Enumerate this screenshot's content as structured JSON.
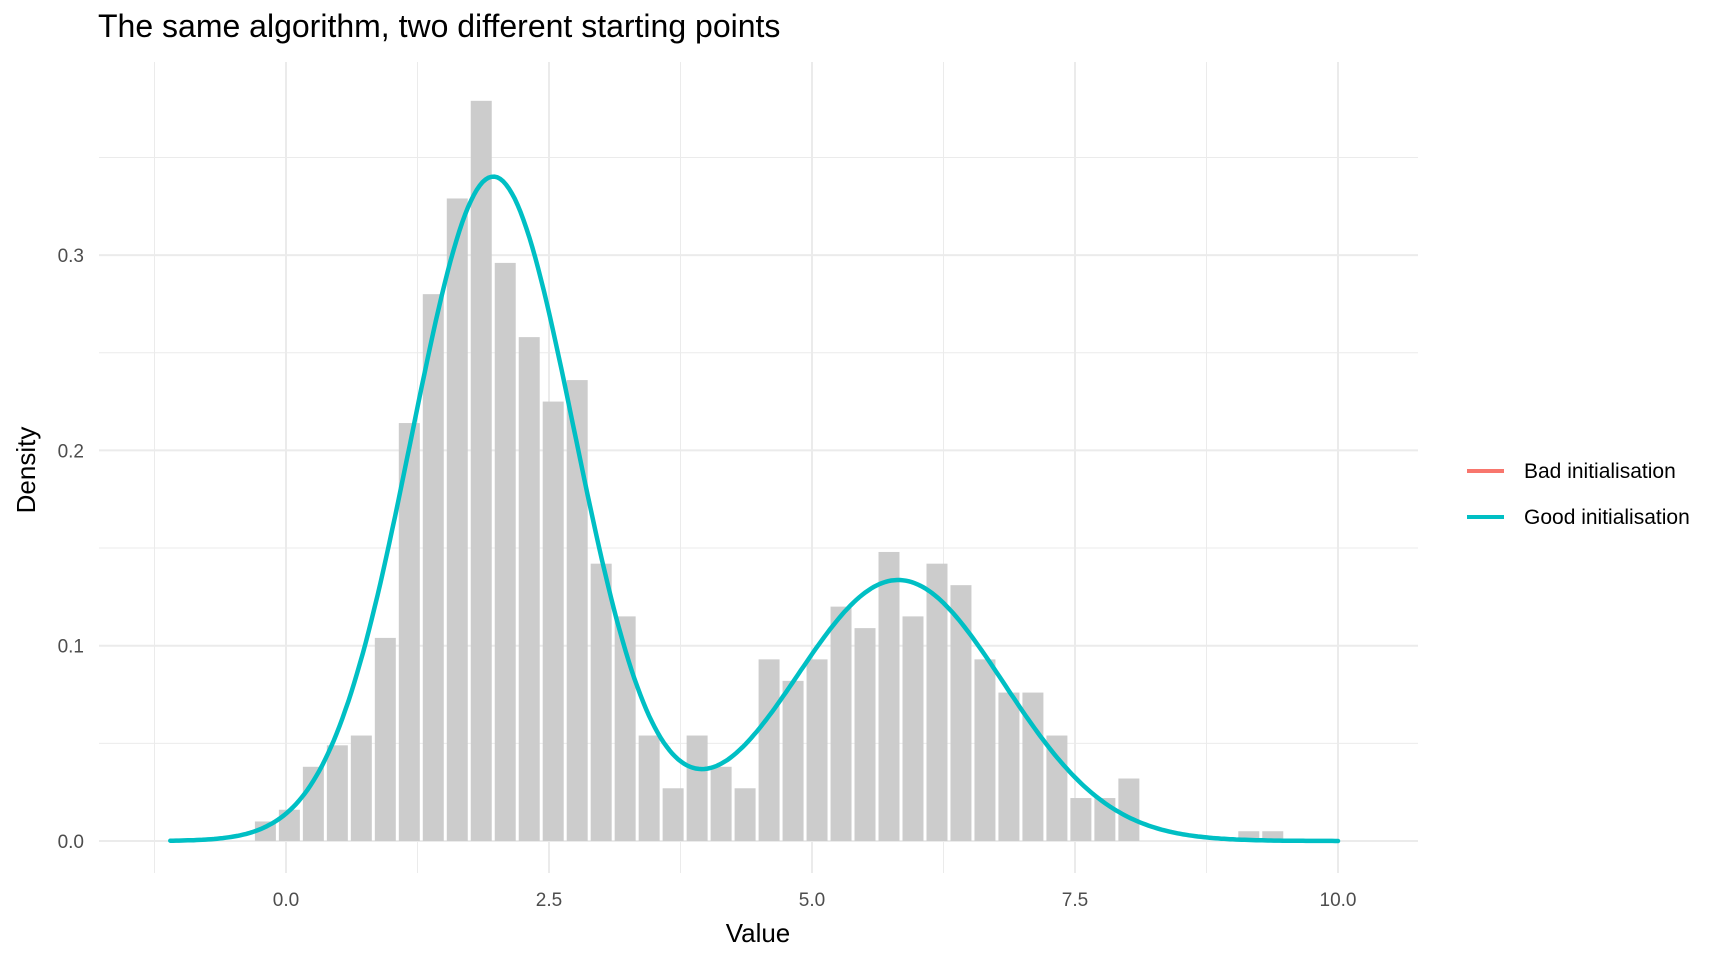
{
  "chart_data": {
    "type": "histogram+line",
    "title": "The same algorithm, two different starting points",
    "xlabel": "Value",
    "ylabel": "Density",
    "xlim": [
      -1.4,
      10.7
    ],
    "ylim": [
      -0.02,
      0.4
    ],
    "x_ticks": [
      "0.0",
      "2.5",
      "5.0",
      "7.5",
      "10.0"
    ],
    "x_tick_values": [
      0,
      2.5,
      5.0,
      7.5,
      10.0
    ],
    "y_ticks": [
      "0.0",
      "0.1",
      "0.2",
      "0.3"
    ],
    "y_tick_values": [
      0,
      0.1,
      0.2,
      0.3
    ],
    "grid": true,
    "legend_position": "right",
    "histogram": {
      "bin_start": -0.31,
      "bin_width": 0.228,
      "color": "#cccccc",
      "values": [
        0.01,
        0.016,
        0.038,
        0.049,
        0.054,
        0.104,
        0.214,
        0.28,
        0.329,
        0.379,
        0.296,
        0.258,
        0.225,
        0.236,
        0.142,
        0.115,
        0.054,
        0.027,
        0.054,
        0.038,
        0.027,
        0.093,
        0.082,
        0.093,
        0.12,
        0.109,
        0.148,
        0.115,
        0.142,
        0.131,
        0.093,
        0.076,
        0.076,
        0.054,
        0.022,
        0.022,
        0.032,
        0,
        0,
        0,
        0,
        0.005,
        0.005
      ]
    },
    "series": [
      {
        "name": "Bad initialisation",
        "color": "#F8766D",
        "visible_curve": false,
        "mixture": [
          {
            "w": 0.665,
            "mu": 1.97,
            "sd": 0.78
          },
          {
            "w": 0.335,
            "mu": 5.82,
            "sd": 1.0
          }
        ]
      },
      {
        "name": "Good initialisation",
        "color": "#00BFC4",
        "visible_curve": true,
        "mixture": [
          {
            "w": 0.665,
            "mu": 1.97,
            "sd": 0.78
          },
          {
            "w": 0.335,
            "mu": 5.82,
            "sd": 1.0
          }
        ],
        "x_range": [
          -1.1,
          10.0
        ]
      }
    ]
  },
  "legend": {
    "items": [
      {
        "label": "Bad initialisation",
        "color": "#F8766D"
      },
      {
        "label": "Good initialisation",
        "color": "#00BFC4"
      }
    ]
  }
}
